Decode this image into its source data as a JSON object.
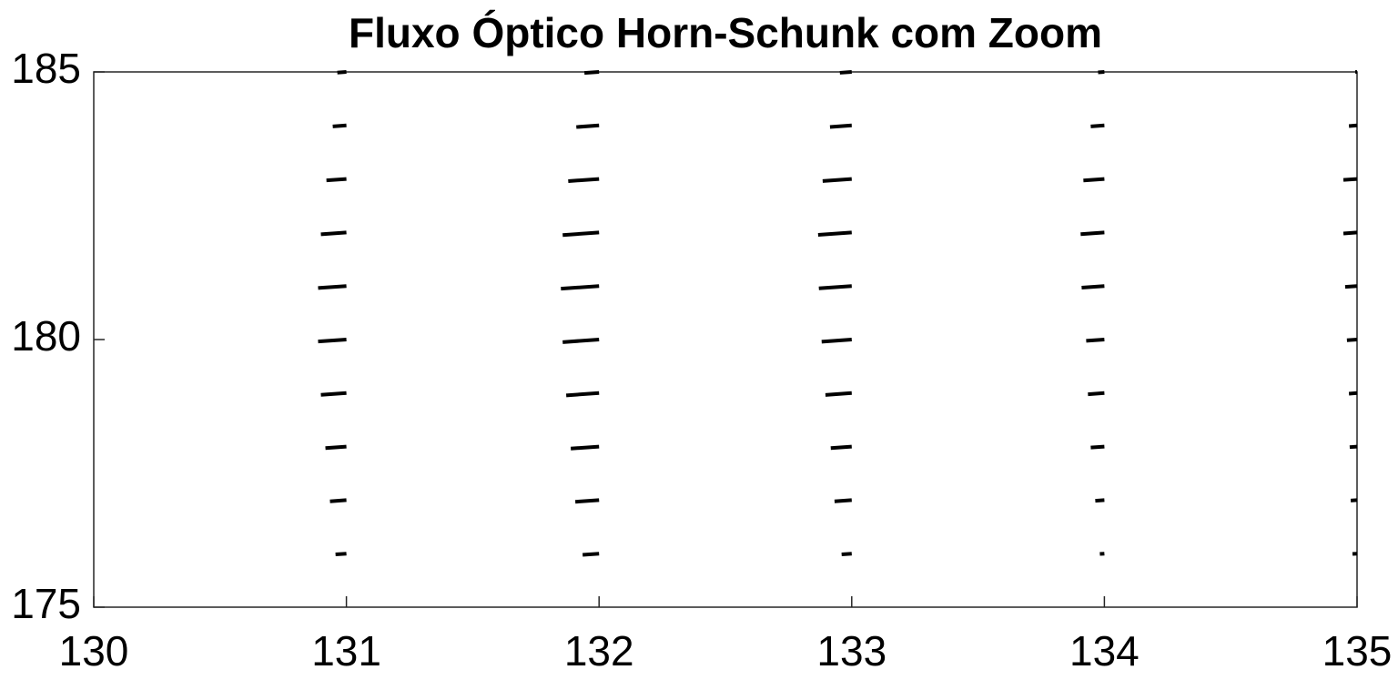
{
  "chart_data": {
    "type": "quiver",
    "title": "Fluxo Óptico Horn-Schunk com Zoom",
    "x": [
      131,
      131,
      131,
      131,
      131,
      131,
      131,
      131,
      131,
      131,
      132,
      132,
      132,
      132,
      132,
      132,
      132,
      132,
      132,
      132,
      133,
      133,
      133,
      133,
      133,
      133,
      133,
      133,
      133,
      133,
      134,
      134,
      134,
      134,
      134,
      134,
      134,
      134,
      134,
      134,
      135,
      135,
      135,
      135,
      135,
      135,
      135,
      135,
      135,
      135
    ],
    "y": [
      185,
      184,
      183,
      182,
      181,
      180,
      179,
      178,
      177,
      176,
      185,
      184,
      183,
      182,
      181,
      180,
      179,
      178,
      177,
      176,
      185,
      184,
      183,
      182,
      181,
      180,
      179,
      178,
      177,
      176,
      185,
      184,
      183,
      182,
      181,
      180,
      179,
      178,
      177,
      176,
      185,
      184,
      183,
      182,
      181,
      180,
      179,
      178,
      177,
      176
    ],
    "u": [
      -0.036,
      -0.054,
      -0.079,
      -0.101,
      -0.112,
      -0.112,
      -0.101,
      -0.083,
      -0.065,
      -0.043,
      -0.058,
      -0.09,
      -0.122,
      -0.144,
      -0.151,
      -0.144,
      -0.13,
      -0.112,
      -0.094,
      -0.065,
      -0.047,
      -0.086,
      -0.115,
      -0.133,
      -0.13,
      -0.119,
      -0.104,
      -0.083,
      -0.068,
      -0.04,
      -0.025,
      -0.054,
      -0.083,
      -0.094,
      -0.09,
      -0.072,
      -0.065,
      -0.054,
      -0.036,
      -0.018,
      -0.007,
      -0.032,
      -0.054,
      -0.054,
      -0.047,
      -0.04,
      -0.032,
      -0.029,
      -0.025,
      -0.018
    ],
    "v": [
      -0.012,
      -0.018,
      -0.026,
      -0.034,
      -0.037,
      -0.037,
      -0.034,
      -0.028,
      -0.022,
      -0.014,
      -0.019,
      -0.03,
      -0.041,
      -0.048,
      -0.05,
      -0.048,
      -0.043,
      -0.037,
      -0.031,
      -0.022,
      -0.016,
      -0.029,
      -0.038,
      -0.044,
      -0.043,
      -0.04,
      -0.035,
      -0.028,
      -0.023,
      -0.013,
      -0.008,
      -0.018,
      -0.028,
      -0.031,
      -0.03,
      -0.024,
      -0.022,
      -0.018,
      -0.012,
      -0.006,
      -0.002,
      -0.011,
      -0.018,
      -0.018,
      -0.016,
      -0.013,
      -0.011,
      -0.01,
      -0.008,
      -0.006
    ],
    "color": "#000000",
    "xlim": [
      130,
      135
    ],
    "xticks": [
      130,
      131,
      132,
      133,
      134,
      135
    ],
    "ylim": [
      175,
      185
    ],
    "yticks": [
      175,
      180,
      185
    ]
  }
}
